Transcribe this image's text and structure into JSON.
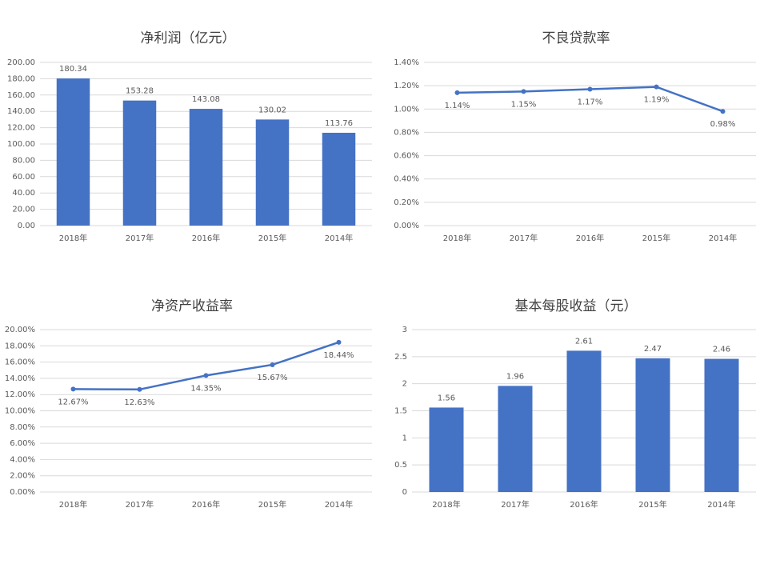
{
  "chart_data": [
    {
      "type": "bar",
      "title": "净利润（亿元）",
      "categories": [
        "2018年",
        "2017年",
        "2016年",
        "2015年",
        "2014年"
      ],
      "values": [
        180.34,
        153.28,
        143.08,
        130.02,
        113.76
      ],
      "color": "#4472c4",
      "ylim": [
        0,
        200
      ],
      "yticks": [
        {
          "value": 0,
          "label": "0.00"
        },
        {
          "value": 20,
          "label": "20.00"
        },
        {
          "value": 40,
          "label": "40.00"
        },
        {
          "value": 60,
          "label": "60.00"
        },
        {
          "value": 80,
          "label": "80.00"
        },
        {
          "value": 100,
          "label": "100.00"
        },
        {
          "value": 120,
          "label": "120.00"
        },
        {
          "value": 140,
          "label": "140.00"
        },
        {
          "value": 160,
          "label": "160.00"
        },
        {
          "value": 180,
          "label": "180.00"
        },
        {
          "value": 200,
          "label": "200.00"
        }
      ],
      "grid": true
    },
    {
      "type": "line",
      "title": "不良贷款率",
      "categories": [
        "2018年",
        "2017年",
        "2016年",
        "2015年",
        "2014年"
      ],
      "values": [
        1.14,
        1.15,
        1.17,
        1.19,
        0.98
      ],
      "value_labels": [
        "1.14%",
        "1.15%",
        "1.17%",
        "1.19%",
        "0.98%"
      ],
      "color": "#4472c4",
      "ylim": [
        0,
        1.4
      ],
      "yticks": [
        {
          "value": 0,
          "label": "0.00%"
        },
        {
          "value": 0.2,
          "label": "0.20%"
        },
        {
          "value": 0.4,
          "label": "0.40%"
        },
        {
          "value": 0.6,
          "label": "0.60%"
        },
        {
          "value": 0.8,
          "label": "0.80%"
        },
        {
          "value": 1.0,
          "label": "1.00%"
        },
        {
          "value": 1.2,
          "label": "1.20%"
        },
        {
          "value": 1.4,
          "label": "1.40%"
        }
      ],
      "grid": true
    },
    {
      "type": "line",
      "title": "净资产收益率",
      "categories": [
        "2018年",
        "2017年",
        "2016年",
        "2015年",
        "2014年"
      ],
      "values": [
        12.67,
        12.63,
        14.35,
        15.67,
        18.44
      ],
      "value_labels": [
        "12.67%",
        "12.63%",
        "14.35%",
        "15.67%",
        "18.44%"
      ],
      "color": "#4472c4",
      "ylim": [
        0,
        20
      ],
      "yticks": [
        {
          "value": 0,
          "label": "0.00%"
        },
        {
          "value": 2,
          "label": "2.00%"
        },
        {
          "value": 4,
          "label": "4.00%"
        },
        {
          "value": 6,
          "label": "6.00%"
        },
        {
          "value": 8,
          "label": "8.00%"
        },
        {
          "value": 10,
          "label": "10.00%"
        },
        {
          "value": 12,
          "label": "12.00%"
        },
        {
          "value": 14,
          "label": "14.00%"
        },
        {
          "value": 16,
          "label": "16.00%"
        },
        {
          "value": 18,
          "label": "18.00%"
        },
        {
          "value": 20,
          "label": "20.00%"
        }
      ],
      "grid": true
    },
    {
      "type": "bar",
      "title": "基本每股收益（元）",
      "categories": [
        "2018年",
        "2017年",
        "2016年",
        "2015年",
        "2014年"
      ],
      "values": [
        1.56,
        1.96,
        2.61,
        2.47,
        2.46
      ],
      "color": "#4472c4",
      "ylim": [
        0,
        3
      ],
      "yticks": [
        0,
        0.5,
        1,
        1.5,
        2,
        2.5,
        3
      ],
      "grid": true
    }
  ]
}
